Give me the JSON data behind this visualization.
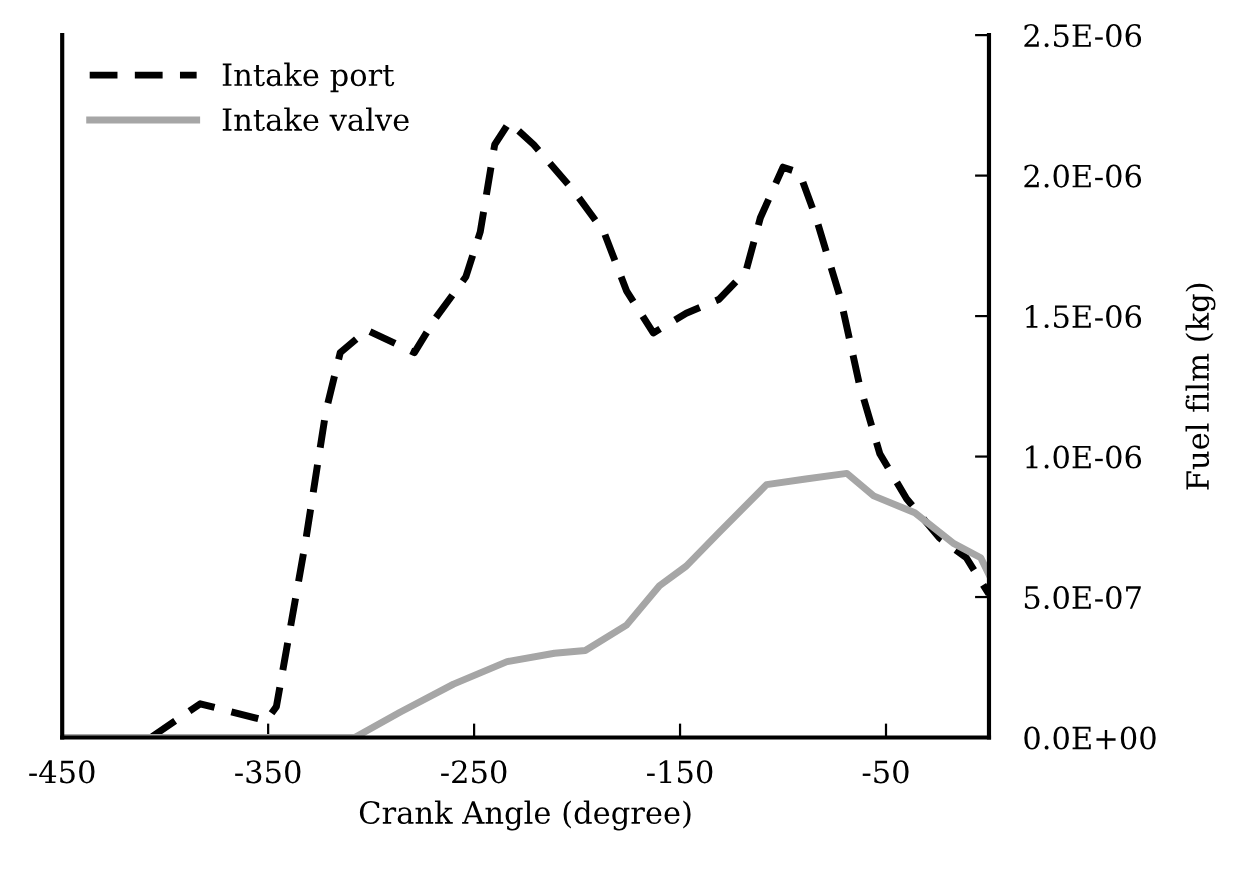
{
  "chart_data": {
    "type": "line",
    "xlabel": "Crank Angle (degree)",
    "ylabel": "Fuel film (kg)",
    "series": [
      {
        "name": "Intake port",
        "color": "#000000",
        "line_style": "dashed",
        "x": [
          -450,
          -407,
          -383,
          -351,
          -346,
          -332,
          -322,
          -315,
          -302,
          -279,
          -269,
          -254,
          -247,
          -240,
          -233,
          -221,
          -201,
          -187,
          -176,
          -163,
          -147,
          -131,
          -118,
          -111,
          -100,
          -92,
          -84,
          -72,
          -63,
          -53,
          -40,
          -24,
          -11,
          0
        ],
        "values": [
          0,
          0,
          1.2e-07,
          6e-08,
          1.1e-07,
          6.9e-07,
          1.16e-06,
          1.37e-06,
          1.45e-06,
          1.37e-06,
          1.49e-06,
          1.64e-06,
          1.8e-06,
          2.11e-06,
          2.19e-06,
          2.11e-06,
          1.94e-06,
          1.8e-06,
          1.59e-06,
          1.44e-06,
          1.51e-06,
          1.56e-06,
          1.66e-06,
          1.85e-06,
          2.03e-06,
          2.01e-06,
          1.85e-06,
          1.56e-06,
          1.26e-06,
          1.01e-06,
          8.5e-07,
          7.1e-07,
          6.4e-07,
          5.1e-07
        ]
      },
      {
        "name": "Intake valve",
        "color": "#a6a6a6",
        "line_style": "solid",
        "x": [
          -450,
          -308,
          -286,
          -260,
          -234,
          -211,
          -196,
          -176,
          -160,
          -147,
          -131,
          -108,
          -89,
          -69,
          -56,
          -36,
          -17,
          -4,
          0
        ],
        "values": [
          0,
          0,
          9e-08,
          1.9e-07,
          2.7e-07,
          3e-07,
          3.1e-07,
          4e-07,
          5.4e-07,
          6.1e-07,
          7.3e-07,
          9e-07,
          9.2e-07,
          9.4e-07,
          8.6e-07,
          8e-07,
          6.9e-07,
          6.4e-07,
          5.8e-07
        ]
      }
    ],
    "xlim": [
      -450,
      0
    ],
    "xticks": [
      -450,
      -350,
      -250,
      -150,
      -50
    ],
    "ylim": [
      0,
      2.5e-06
    ],
    "yticks": [
      {
        "value": 0,
        "label": "0.0E+00"
      },
      {
        "value": 5e-07,
        "label": "5.0E-07"
      },
      {
        "value": 1e-06,
        "label": "1.0E-06"
      },
      {
        "value": 1.5e-06,
        "label": "1.5E-06"
      },
      {
        "value": 2e-06,
        "label": "2.0E-06"
      },
      {
        "value": 2.5e-06,
        "label": "2.5E-06"
      }
    ],
    "grid": false,
    "legend": "top left",
    "marker": "none"
  }
}
